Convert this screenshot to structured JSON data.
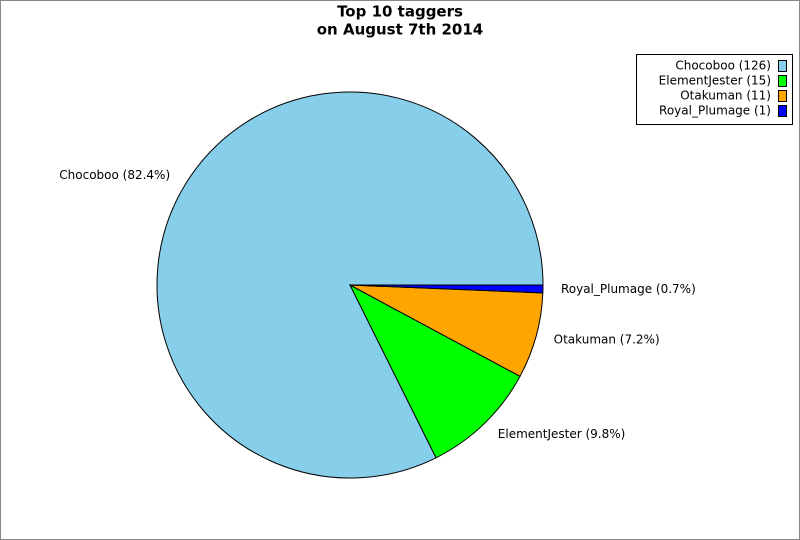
{
  "chart_data": {
    "type": "pie",
    "title": [
      "Top 10 taggers",
      "on August 7th 2014"
    ],
    "categories": [
      "Chocoboo",
      "ElementJester",
      "Otakuman",
      "Royal_Plumage"
    ],
    "values": [
      126,
      15,
      11,
      1
    ],
    "colors": [
      "#87ceeb",
      "#00ff00",
      "#ffa500",
      "#0000ff"
    ],
    "legend_labels": [
      "Chocoboo (126)",
      "ElementJester (15)",
      "Otakuman (11)",
      "Royal_Plumage (1)"
    ],
    "slice_labels": [
      "Chocoboo (82.4%)",
      "ElementJester (9.8%)",
      "Otakuman (7.2%)",
      "Royal_Plumage (0.7%)"
    ],
    "legend": "top-right"
  }
}
